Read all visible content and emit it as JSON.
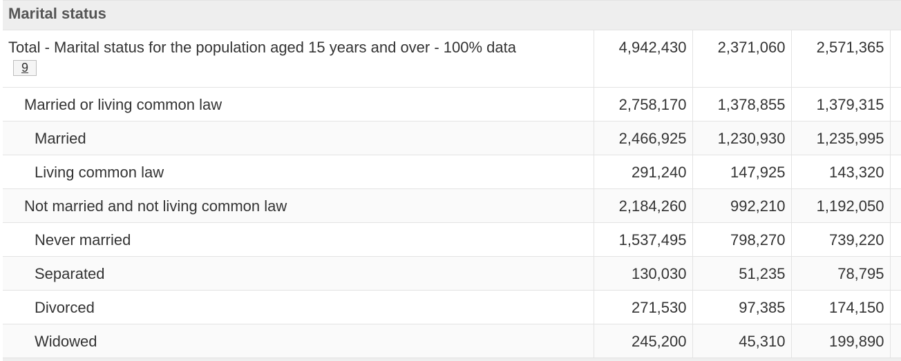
{
  "section": {
    "title": "Marital status"
  },
  "rows": [
    {
      "label": "Total - Marital status for the population aged 15 years and over - 100% data",
      "footnote": "9",
      "values": [
        "4,942,430",
        "2,371,060",
        "2,571,365"
      ]
    },
    {
      "label": "Married or living common law",
      "values": [
        "2,758,170",
        "1,378,855",
        "1,379,315"
      ]
    },
    {
      "label": "Married",
      "values": [
        "2,466,925",
        "1,230,930",
        "1,235,995"
      ]
    },
    {
      "label": "Living common law",
      "values": [
        "291,240",
        "147,925",
        "143,320"
      ]
    },
    {
      "label": "Not married and not living common law",
      "values": [
        "2,184,260",
        "992,210",
        "1,192,050"
      ]
    },
    {
      "label": "Never married",
      "values": [
        "1,537,495",
        "798,270",
        "739,220"
      ]
    },
    {
      "label": "Separated",
      "values": [
        "130,030",
        "51,235",
        "78,795"
      ]
    },
    {
      "label": "Divorced",
      "values": [
        "271,530",
        "97,385",
        "174,150"
      ]
    },
    {
      "label": "Widowed",
      "values": [
        "245,200",
        "45,310",
        "199,890"
      ]
    }
  ]
}
